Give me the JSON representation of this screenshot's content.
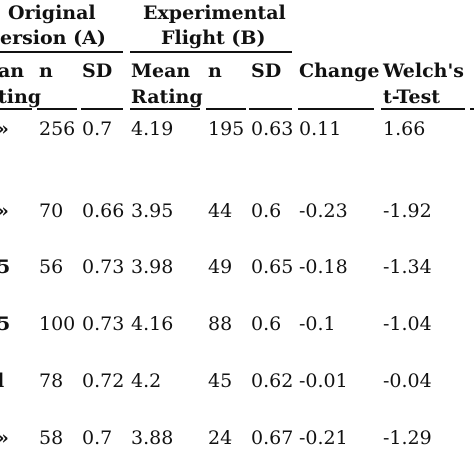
{
  "header": {
    "group_a_line1": "Original",
    "group_a_line2": "ersion (A)",
    "group_b_line1": "Experimental",
    "group_b_line2": "Flight (B)",
    "col_mean_a_line1": "an",
    "col_mean_a_line2": "ting",
    "col_n_a": "n",
    "col_sd_a": "SD",
    "col_mean_b_line1": "Mean",
    "col_mean_b_line2": "Rating",
    "col_n_b": "n",
    "col_sd_b": "SD",
    "col_change": "Change",
    "col_welch_line1": "Welch's",
    "col_welch_line2": "t-Test"
  },
  "rows": [
    {
      "mean_a": "»",
      "n_a": "256",
      "sd_a": "0.7",
      "mean_b": "4.19",
      "n_b": "195",
      "sd_b": "0.63",
      "change": "0.11",
      "welch": "1.66"
    },
    {
      "mean_a": "»",
      "n_a": "70",
      "sd_a": "0.66",
      "mean_b": "3.95",
      "n_b": "44",
      "sd_b": "0.6",
      "change": "-0.23",
      "welch": "-1.92"
    },
    {
      "mean_a": "5",
      "n_a": "56",
      "sd_a": "0.73",
      "mean_b": "3.98",
      "n_b": "49",
      "sd_b": "0.65",
      "change": "-0.18",
      "welch": "-1.34"
    },
    {
      "mean_a": "5",
      "n_a": "100",
      "sd_a": "0.73",
      "mean_b": "4.16",
      "n_b": "88",
      "sd_b": "0.6",
      "change": "-0.1",
      "welch": "-1.04"
    },
    {
      "mean_a": "l",
      "n_a": "78",
      "sd_a": "0.72",
      "mean_b": "4.2",
      "n_b": "45",
      "sd_b": "0.62",
      "change": "-0.01",
      "welch": "-0.04"
    },
    {
      "mean_a": "»",
      "n_a": "58",
      "sd_a": "0.7",
      "mean_b": "3.88",
      "n_b": "24",
      "sd_b": "0.67",
      "change": "-0.21",
      "welch": "-1.29"
    }
  ]
}
